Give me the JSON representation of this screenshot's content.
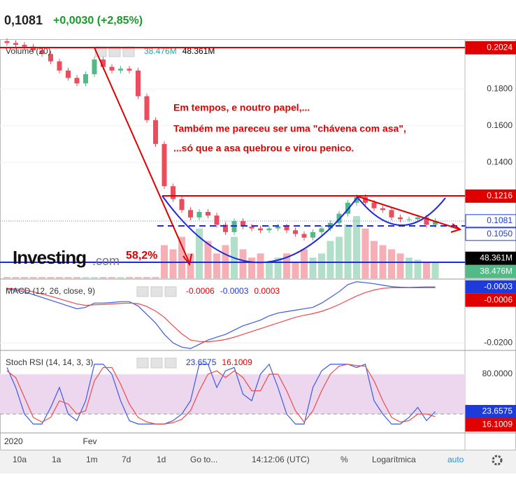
{
  "header": {
    "price": "0,1081",
    "change": "+0,0030 (+2,85%)"
  },
  "annotations": [
    "Em tempos, e noutro papel,...",
    "Também me pareceu ser uma \"chávena com asa\",",
    "...só que a asa quebrou e virou penico."
  ],
  "percent_label": "58,2%",
  "logo": {
    "name": "Investing",
    "suffix": ".com"
  },
  "toolbar": [
    "10a",
    "1a",
    "1m",
    "7d",
    "1d",
    "Go to...",
    "14:12:06 (UTC)",
    "%",
    "Logarítmica",
    "auto"
  ],
  "chart_data": [
    {
      "type": "candlestick",
      "up_color": "#53b987",
      "down_color": "#eb4d5c",
      "categories": [
        "2020",
        null,
        null,
        null,
        null,
        null,
        null,
        null,
        null,
        "Fev",
        null,
        null,
        null,
        null,
        null,
        null,
        null,
        null,
        null,
        null,
        null,
        null,
        null,
        null,
        null,
        null,
        null,
        null,
        null,
        null,
        null,
        null,
        null,
        null,
        null,
        null,
        null,
        null,
        null,
        null,
        null,
        null,
        null,
        null,
        null,
        null,
        null,
        null,
        null,
        null
      ],
      "open": [
        0.206,
        0.205,
        0.204,
        0.203,
        0.201,
        0.199,
        0.195,
        0.19,
        0.186,
        0.183,
        0.188,
        0.196,
        0.192,
        0.19,
        0.191,
        0.19,
        0.176,
        0.163,
        0.15,
        0.127,
        0.12,
        0.114,
        0.11,
        0.113,
        0.111,
        0.106,
        0.102,
        0.108,
        0.105,
        0.104,
        0.103,
        0.104,
        0.105,
        0.103,
        0.101,
        0.099,
        0.102,
        0.104,
        0.107,
        0.112,
        0.118,
        0.121,
        0.118,
        0.115,
        0.114,
        0.11,
        0.109,
        0.109,
        0.11,
        0.106
      ],
      "close": [
        0.205,
        0.204,
        0.203,
        0.201,
        0.199,
        0.195,
        0.19,
        0.186,
        0.183,
        0.188,
        0.196,
        0.192,
        0.19,
        0.191,
        0.19,
        0.176,
        0.163,
        0.15,
        0.127,
        0.12,
        0.114,
        0.11,
        0.113,
        0.111,
        0.106,
        0.102,
        0.108,
        0.105,
        0.104,
        0.103,
        0.104,
        0.105,
        0.103,
        0.101,
        0.099,
        0.102,
        0.104,
        0.107,
        0.112,
        0.118,
        0.121,
        0.118,
        0.115,
        0.114,
        0.11,
        0.109,
        0.109,
        0.11,
        0.106,
        0.1081
      ],
      "ylim": [
        0.0768,
        0.2067
      ],
      "yticks": [
        {
          "value": 0.18,
          "label": "0.1800"
        },
        {
          "value": 0.16,
          "label": "0.1600"
        },
        {
          "value": 0.14,
          "label": "0.1400"
        }
      ],
      "markers": [
        {
          "value": 0.2024,
          "label": "0.2024",
          "color": "#e00000",
          "text_color": "#ffffff"
        },
        {
          "value": 0.1216,
          "label": "0.1216",
          "color": "#e00000",
          "text_color": "#ffffff"
        },
        {
          "value": 0.1081,
          "label": "0.1081",
          "color": "#ffffff",
          "text_color": "#1e3ad8"
        },
        {
          "value": 0.105,
          "label": "0.1050",
          "color": "#ffffff",
          "text_color": "#1e3ad8"
        }
      ]
    },
    {
      "type": "bar",
      "name": "Volume (20)",
      "legend_values": [
        "38.476M",
        "48.361M"
      ],
      "legend_colors": [
        "#26a69a",
        "#000000"
      ],
      "values": [
        3,
        3,
        3,
        3,
        3,
        3,
        3,
        3,
        3,
        3,
        3,
        3,
        3,
        3,
        3,
        3,
        3,
        3,
        80,
        70,
        100,
        60,
        120,
        90,
        60,
        80,
        100,
        70,
        50,
        60,
        40,
        50,
        60,
        40,
        70,
        50,
        60,
        90,
        100,
        130,
        150,
        120,
        90,
        80,
        70,
        60,
        50,
        45,
        40,
        38.476
      ],
      "ylim": [
        0,
        165
      ],
      "markers": [
        {
          "value": 48.361,
          "label": "48.361M",
          "color": "#000000",
          "text_color": "#ffffff"
        },
        {
          "value": 38.476,
          "label": "38.476M",
          "color": "#53b987",
          "text_color": "#ffffff"
        }
      ]
    },
    {
      "type": "line",
      "name": "MACD (12, 26, close, 9)",
      "legend_values": [
        "-0.0006",
        "-0.0003",
        "0.0003"
      ],
      "legend_colors": [
        "#e00000",
        "#1e3ad8",
        "#e00000"
      ],
      "series": [
        {
          "color": "#3d5be0",
          "values": [
            -0.001,
            -0.0015,
            -0.002,
            -0.003,
            -0.004,
            -0.005,
            -0.006,
            -0.007,
            -0.008,
            -0.0075,
            -0.006,
            -0.006,
            -0.0058,
            -0.0055,
            -0.0055,
            -0.007,
            -0.01,
            -0.013,
            -0.017,
            -0.02,
            -0.0215,
            -0.022,
            -0.0205,
            -0.019,
            -0.018,
            -0.017,
            -0.0155,
            -0.014,
            -0.013,
            -0.012,
            -0.0105,
            -0.0095,
            -0.009,
            -0.0085,
            -0.008,
            -0.0075,
            -0.006,
            -0.004,
            -0.002,
            0.0005,
            0.0015,
            0.0012,
            0.0008,
            0.0003,
            -0.0002,
            -0.0004,
            -0.0005,
            -0.0004,
            -0.0003,
            -0.0003
          ]
        },
        {
          "color": "#ef4a4a",
          "values": [
            -0.0008,
            -0.001,
            -0.0014,
            -0.002,
            -0.0028,
            -0.0036,
            -0.0045,
            -0.0054,
            -0.0063,
            -0.0068,
            -0.0066,
            -0.0065,
            -0.0063,
            -0.0061,
            -0.006,
            -0.0062,
            -0.0072,
            -0.0088,
            -0.011,
            -0.014,
            -0.0168,
            -0.019,
            -0.0195,
            -0.0196,
            -0.0193,
            -0.0188,
            -0.018,
            -0.017,
            -0.016,
            -0.015,
            -0.014,
            -0.013,
            -0.012,
            -0.011,
            -0.0103,
            -0.0097,
            -0.0089,
            -0.0078,
            -0.0065,
            -0.005,
            -0.0035,
            -0.0023,
            -0.0014,
            -0.0008,
            -0.0006,
            -0.0006,
            -0.0006,
            -0.0006,
            -0.0006,
            -0.0006
          ]
        }
      ],
      "ylim": [
        -0.0224,
        0.0022
      ],
      "yticks": [
        {
          "value": -0.02,
          "label": "-0.0200"
        }
      ],
      "markers": [
        {
          "value": -0.0003,
          "label": "-0.0003",
          "color": "#1e3ad8",
          "text_color": "#ffffff"
        },
        {
          "value": -0.0006,
          "label": "-0.0006",
          "color": "#e00000",
          "text_color": "#ffffff"
        }
      ]
    },
    {
      "type": "line",
      "name": "Stoch RSI (14, 14, 3, 3)",
      "legend_values": [
        "23.6575",
        "16.1009"
      ],
      "legend_colors": [
        "#1e3ad8",
        "#e00000"
      ],
      "band": [
        20,
        80
      ],
      "band_color": "#ecd7ef",
      "series": [
        {
          "color": "#3d5be0",
          "values": [
            90,
            60,
            20,
            5,
            5,
            30,
            60,
            20,
            10,
            40,
            95,
            95,
            80,
            40,
            10,
            5,
            5,
            5,
            5,
            10,
            20,
            40,
            95,
            95,
            60,
            85,
            90,
            50,
            40,
            80,
            95,
            60,
            20,
            5,
            5,
            60,
            85,
            95,
            95,
            95,
            90,
            95,
            40,
            20,
            5,
            5,
            15,
            30,
            10,
            23.6575
          ]
        },
        {
          "color": "#ef4a4a",
          "values": [
            85,
            75,
            45,
            15,
            8,
            15,
            40,
            35,
            20,
            25,
            70,
            90,
            90,
            65,
            35,
            15,
            8,
            5,
            5,
            7,
            12,
            25,
            55,
            80,
            85,
            75,
            85,
            75,
            55,
            55,
            80,
            80,
            55,
            25,
            8,
            25,
            55,
            80,
            92,
            95,
            93,
            92,
            70,
            40,
            15,
            8,
            10,
            20,
            20,
            16.1009
          ]
        }
      ],
      "ylim": [
        -7.4,
        114.7
      ],
      "yticks": [
        {
          "value": 80,
          "label": "80.0000"
        }
      ],
      "markers": [
        {
          "value": 23.6575,
          "label": "23.6575",
          "color": "#1e3ad8",
          "text_color": "#ffffff"
        },
        {
          "value": 16.1009,
          "label": "16.1009",
          "color": "#e00000",
          "text_color": "#ffffff"
        }
      ]
    }
  ]
}
